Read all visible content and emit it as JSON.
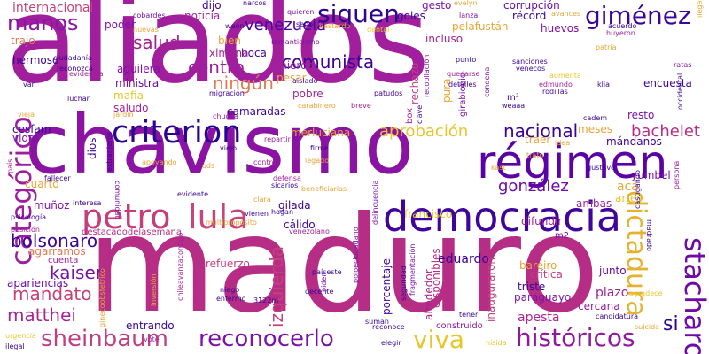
{
  "palette": {
    "purple": "#8e1f9e",
    "violet": "#7a11a8",
    "indigo": "#3d049c",
    "magenta": "#b0238a",
    "pink": "#c4407a",
    "rose": "#d85a66",
    "orange": "#e8844c",
    "amber": "#eea52e",
    "yellow": "#f0e020"
  },
  "words": [
    {
      "text": "aliados",
      "color": "#a11f9d"
    },
    {
      "text": "maduro",
      "color": "#b62d86"
    },
    {
      "text": "chavismo",
      "color": "#8a13a3"
    },
    {
      "text": "democracia",
      "color": "#3e049c"
    },
    {
      "text": "régimen",
      "color": "#5a02a3"
    },
    {
      "text": "criterion",
      "color": "#2a0594"
    },
    {
      "text": "petro",
      "color": "#c53e7a"
    },
    {
      "text": "lula",
      "color": "#c94478"
    },
    {
      "text": "categórico",
      "color": "#9d1e9e"
    },
    {
      "text": "dictadura",
      "color": "#e5b22f"
    },
    {
      "text": "stacharo",
      "color": "#6d0aa8"
    },
    {
      "text": "sheinbaum",
      "color": "#c03f82"
    },
    {
      "text": "reconocerlo",
      "color": "#7d12a8"
    },
    {
      "text": "históricos",
      "color": "#8f1aa0"
    },
    {
      "text": "viva",
      "color": "#e8c62a"
    },
    {
      "text": "siguen",
      "color": "#2d058f"
    },
    {
      "text": "giménez",
      "color": "#3b049a"
    },
    {
      "text": "manos",
      "color": "#8a16a5"
    },
    {
      "text": "internacional",
      "color": "#c3447a"
    },
    {
      "text": "salud",
      "color": "#a22493"
    },
    {
      "text": "venezuela",
      "color": "#4b04a2"
    },
    {
      "text": "comunista",
      "color": "#3a0497"
    },
    {
      "text": "centro",
      "color": "#9a1fa0"
    },
    {
      "text": "ningún",
      "color": "#e07954"
    },
    {
      "text": "aprobación",
      "color": "#e8c62a"
    },
    {
      "text": "nacional",
      "color": "#3a0497"
    },
    {
      "text": "bachelet",
      "color": "#b92d8a"
    },
    {
      "text": "gonzález",
      "color": "#6b0ba8"
    },
    {
      "text": "kaiser",
      "color": "#7513a6"
    },
    {
      "text": "bolsonaro",
      "color": "#3a0497"
    },
    {
      "text": "mandato",
      "color": "#c74178"
    },
    {
      "text": "matthei",
      "color": "#a8258f"
    },
    {
      "text": "izquierda",
      "color": "#c8407a"
    },
    {
      "text": "si",
      "color": "#2a0594"
    },
    {
      "text": "eduardo",
      "color": "#3a0497"
    },
    {
      "text": "porcentaje",
      "color": "#3a0497"
    },
    {
      "text": "disponibles",
      "color": "#b72e87"
    },
    {
      "text": "inauguraron",
      "color": "#c34180"
    },
    {
      "text": "plazo",
      "color": "#a2239a"
    },
    {
      "text": "apesta",
      "color": "#ae2791"
    },
    {
      "text": "cercana",
      "color": "#9a1fa0"
    },
    {
      "text": "paraguayo",
      "color": "#7d12a8"
    },
    {
      "text": "triste",
      "color": "#3a0497"
    },
    {
      "text": "crítica",
      "color": "#c03f82"
    },
    {
      "text": "bareiro",
      "color": "#e8a538"
    },
    {
      "text": "junto",
      "color": "#6b0ba8"
    },
    {
      "text": "alrededor",
      "color": "#a8258f"
    },
    {
      "text": "entrando",
      "color": "#3a0497"
    },
    {
      "text": "construido",
      "color": "#8f1aa0"
    },
    {
      "text": "refuerzo",
      "color": "#c34180"
    },
    {
      "text": "apariencias",
      "color": "#6b0ba8"
    },
    {
      "text": "cuarto",
      "color": "#e8a538"
    },
    {
      "text": "agarramos",
      "color": "#e07954"
    },
    {
      "text": "muñoz",
      "color": "#7d12a8"
    },
    {
      "text": "cuenta",
      "color": "#a2239a"
    },
    {
      "text": "gilada",
      "color": "#3a0497"
    },
    {
      "text": "cálido",
      "color": "#3a0497"
    },
    {
      "text": "destacadodelasemana",
      "color": "#b72e87"
    },
    {
      "text": "merluciana",
      "color": "#e8a538"
    },
    {
      "text": "dios",
      "color": "#3a0497"
    },
    {
      "text": "camaradas",
      "color": "#3a0497"
    },
    {
      "text": "pobre",
      "color": "#a2239a"
    },
    {
      "text": "pesar",
      "color": "#e8a538"
    },
    {
      "text": "mierda",
      "color": "#a2239a"
    },
    {
      "text": "boca",
      "color": "#3a0497"
    },
    {
      "text": "hermoso",
      "color": "#3a0497"
    },
    {
      "text": "aguilera",
      "color": "#7d12a8"
    },
    {
      "text": "ministra",
      "color": "#6b0ba8"
    },
    {
      "text": "mafia",
      "color": "#e8c62a"
    },
    {
      "text": "saludo",
      "color": "#a2239a"
    },
    {
      "text": "cesfam",
      "color": "#3a0497"
    },
    {
      "text": "vidal",
      "color": "#7d12a8"
    },
    {
      "text": "trajo",
      "color": "#e07954"
    },
    {
      "text": "poder",
      "color": "#7d12a8"
    },
    {
      "text": "ximena",
      "color": "#a2239a"
    },
    {
      "text": "noticia",
      "color": "#a2239a"
    },
    {
      "text": "dijo",
      "color": "#3a0497"
    },
    {
      "text": "bien",
      "color": "#e8a538"
    },
    {
      "text": "rechazo",
      "color": "#c34180"
    },
    {
      "text": "goles",
      "color": "#3a0497"
    },
    {
      "text": "gesto",
      "color": "#7d12a8"
    },
    {
      "text": "corrupción",
      "color": "#6b0ba8"
    },
    {
      "text": "récord",
      "color": "#3a0497"
    },
    {
      "text": "pelafustán",
      "color": "#e8a538"
    },
    {
      "text": "huevos",
      "color": "#7d12a8"
    },
    {
      "text": "incluso",
      "color": "#a2239a"
    },
    {
      "text": "encuesta",
      "color": "#3a0497"
    },
    {
      "text": "pura",
      "color": "#e8a538"
    },
    {
      "text": "girabiobio",
      "color": "#7d12a8"
    },
    {
      "text": "resto",
      "color": "#7d12a8"
    },
    {
      "text": "box",
      "color": "#a2239a"
    },
    {
      "text": "m²",
      "color": "#3a0497"
    },
    {
      "text": "traer",
      "color": "#e8a538"
    },
    {
      "text": "mándanos",
      "color": "#3a0497"
    },
    {
      "text": "meses",
      "color": "#e8a538"
    },
    {
      "text": "yumbel",
      "color": "#7d12a8"
    },
    {
      "text": "ambas",
      "color": "#a2239a"
    },
    {
      "text": "acá",
      "color": "#e8a538"
    },
    {
      "text": "artés",
      "color": "#e8c62a"
    },
    {
      "text": "difundir",
      "color": "#a2239a"
    },
    {
      "text": "francisco",
      "color": "#e8c62a"
    },
    {
      "text": "m2",
      "color": "#7d12a8"
    },
    {
      "text": "cobardes",
      "color": "#7d12a8"
    },
    {
      "text": "nuevas",
      "color": "#e8a538"
    },
    {
      "text": "weon",
      "color": "#3a0497"
    },
    {
      "text": "narcos",
      "color": "#3a0497"
    },
    {
      "text": "quieren",
      "color": "#7d12a8"
    },
    {
      "text": "señor",
      "color": "#3a0497"
    },
    {
      "text": "romanticismo",
      "color": "#7d12a8"
    },
    {
      "text": "bastardo",
      "color": "#e8a538"
    },
    {
      "text": "evelyn",
      "color": "#e8a538"
    },
    {
      "text": "lanza",
      "color": "#7d12a8"
    },
    {
      "text": "avances",
      "color": "#e8a538"
    },
    {
      "text": "dental",
      "color": "#e8c62a"
    },
    {
      "text": "ciudadanía",
      "color": "#3a0497"
    },
    {
      "text": "reconozca",
      "color": "#3a0497"
    },
    {
      "text": "sanciones",
      "color": "#3a0497"
    },
    {
      "text": "venecos",
      "color": "#3a0497"
    },
    {
      "text": "evidencia",
      "color": "#a2239a"
    },
    {
      "text": "aumenta",
      "color": "#e8c62a"
    },
    {
      "text": "edmundo",
      "color": "#a2239a"
    },
    {
      "text": "ilegalidad",
      "color": "#e8a538"
    },
    {
      "text": "patria",
      "color": "#e8a538"
    },
    {
      "text": "acuerdo",
      "color": "#3a0497"
    },
    {
      "text": "ratas",
      "color": "#7d12a8"
    },
    {
      "text": "huyeron",
      "color": "#a2239a"
    },
    {
      "text": "rodillas",
      "color": "#3a0497"
    },
    {
      "text": "klia",
      "color": "#3a0497"
    },
    {
      "text": "detalles",
      "color": "#3a0497"
    },
    {
      "text": "weaaa",
      "color": "#3a0497"
    },
    {
      "text": "breve",
      "color": "#a2239a"
    },
    {
      "text": "patudos",
      "color": "#3a0497"
    },
    {
      "text": "aislado",
      "color": "#3a0497"
    },
    {
      "text": "quedarse",
      "color": "#a2239a"
    },
    {
      "text": "punto",
      "color": "#3a0497"
    },
    {
      "text": "cadem",
      "color": "#3a0497"
    },
    {
      "text": "occidental",
      "color": "#3a0497"
    },
    {
      "text": "migración",
      "color": "#3a0497"
    },
    {
      "text": "carabinero",
      "color": "#e8a538"
    },
    {
      "text": "chucha",
      "color": "#a2239a"
    },
    {
      "text": "luchar",
      "color": "#3a0497"
    },
    {
      "text": "van",
      "color": "#3a0497"
    },
    {
      "text": "vieja",
      "color": "#e8a538"
    },
    {
      "text": "jardín",
      "color": "#e8a538"
    },
    {
      "text": "recopilación",
      "color": "#7d12a8"
    },
    {
      "text": "condena",
      "color": "#7d12a8"
    },
    {
      "text": "clave",
      "color": "#3a0497"
    },
    {
      "text": "idea",
      "color": "#e8a538"
    },
    {
      "text": "trato",
      "color": "#e8a538"
    },
    {
      "text": "firme",
      "color": "#3a0497"
    },
    {
      "text": "legado",
      "color": "#e8a538"
    },
    {
      "text": "repartir",
      "color": "#a2239a"
    },
    {
      "text": "viejo",
      "color": "#3a0497"
    },
    {
      "text": "control",
      "color": "#a2239a"
    },
    {
      "text": "defensa",
      "color": "#a2239a"
    },
    {
      "text": "sicarios",
      "color": "#3a0497"
    },
    {
      "text": "beneficiarias",
      "color": "#e8a538"
    },
    {
      "text": "kast",
      "color": "#e8a538"
    },
    {
      "text": "extranjeros",
      "color": "#3a0497"
    },
    {
      "text": "apoyando",
      "color": "#e8a538"
    },
    {
      "text": "ods",
      "color": "#e8a538"
    },
    {
      "text": "comunidad",
      "color": "#7d12a8"
    },
    {
      "text": "fallecer",
      "color": "#3a0497"
    },
    {
      "text": "país",
      "color": "#a2239a"
    },
    {
      "text": "interesa",
      "color": "#3a0497"
    },
    {
      "text": "psicología",
      "color": "#3a0497"
    },
    {
      "text": "posición",
      "color": "#a2239a"
    },
    {
      "text": "evidente",
      "color": "#3a0497"
    },
    {
      "text": "clara",
      "color": "#e8a538"
    },
    {
      "text": "vienen",
      "color": "#3a0497"
    },
    {
      "text": "hagan",
      "color": "#3a0497"
    },
    {
      "text": "multipropósito",
      "color": "#e8a538"
    },
    {
      "text": "delincuencia",
      "color": "#7d12a8"
    },
    {
      "text": "venezolano",
      "color": "#a2239a"
    },
    {
      "text": "castigando",
      "color": "#3a0497"
    },
    {
      "text": "gustavo",
      "color": "#3a0497"
    },
    {
      "text": "persona",
      "color": "#a2239a"
    },
    {
      "text": "madrado",
      "color": "#3a0497"
    },
    {
      "text": "chileavanzacontigo",
      "color": "#a2239a"
    },
    {
      "text": "ginecoobstetrico",
      "color": "#e8a538"
    },
    {
      "text": "inversión",
      "color": "#e8a538"
    },
    {
      "text": "niego",
      "color": "#3a0497"
    },
    {
      "text": "enfermo",
      "color": "#3a0497"
    },
    {
      "text": "3122m",
      "color": "#3a0497"
    },
    {
      "text": "decente",
      "color": "#3a0497"
    },
    {
      "text": "piden",
      "color": "#7d12a8"
    },
    {
      "text": "poloeciudadano",
      "color": "#7d12a8"
    },
    {
      "text": "seguridad",
      "color": "#3a0497"
    },
    {
      "text": "fragmentación",
      "color": "#7d12a8"
    },
    {
      "text": "agradece",
      "color": "#e8c62a"
    },
    {
      "text": "suicida",
      "color": "#e8a538"
    },
    {
      "text": "candidatura",
      "color": "#3a0497"
    },
    {
      "text": "tener",
      "color": "#3a0497"
    },
    {
      "text": "suman",
      "color": "#3a0497"
    },
    {
      "text": "elegir",
      "color": "#3a0497"
    },
    {
      "text": "reconoce",
      "color": "#3a0497"
    },
    {
      "text": "nisida",
      "color": "#e8c62a"
    },
    {
      "text": "ilegal",
      "color": "#3a0497"
    },
    {
      "text": "urgencia",
      "color": "#e8c62a"
    },
    {
      "text": "vote",
      "color": "#a2239a"
    },
    {
      "text": "paíseste",
      "color": "#3a0497"
    }
  ]
}
